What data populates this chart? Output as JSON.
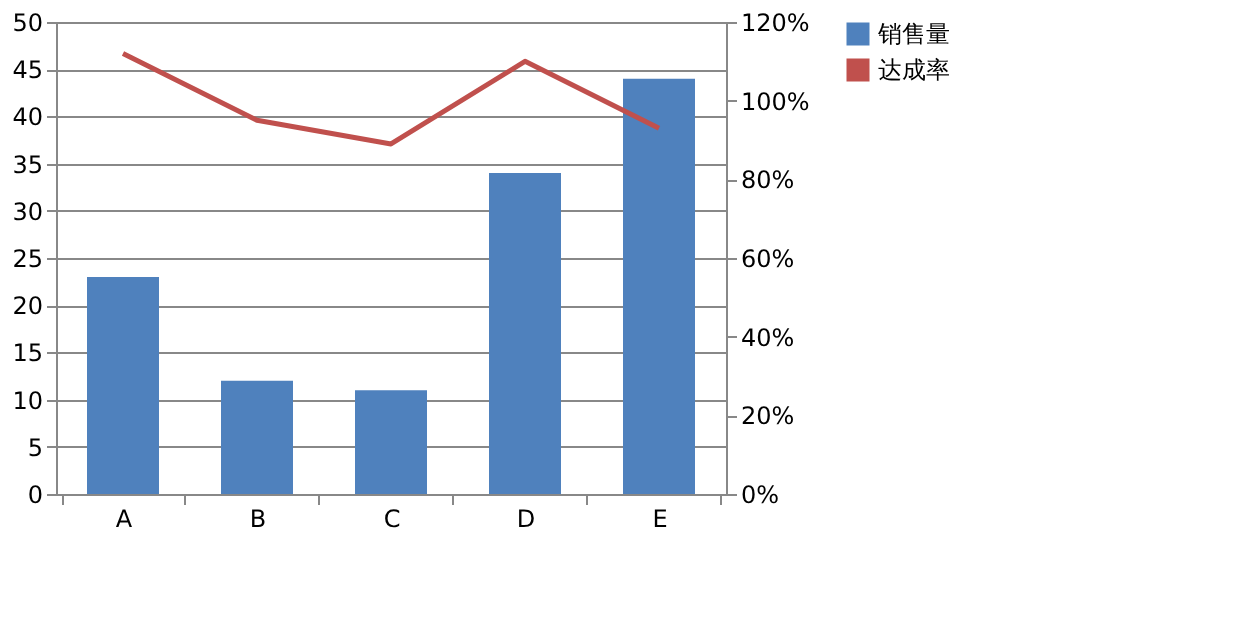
{
  "chart_data": {
    "type": "bar",
    "categories": [
      "A",
      "B",
      "C",
      "D",
      "E"
    ],
    "series": [
      {
        "name": "销售量",
        "color": "#4f81bd",
        "values": [
          23,
          12,
          11,
          34,
          44
        ]
      },
      {
        "name": "达成率",
        "type": "line",
        "axis": "y2",
        "color": "#c0504d",
        "values": [
          112,
          95,
          89,
          110,
          93
        ]
      }
    ],
    "ylim": [
      0,
      50
    ],
    "yticks": [
      0,
      5,
      10,
      15,
      20,
      25,
      30,
      35,
      40,
      45,
      50
    ],
    "y2lim": [
      0,
      120
    ],
    "y2ticks": [
      {
        "value": 0,
        "label": "0%"
      },
      {
        "value": 20,
        "label": "20%"
      },
      {
        "value": 40,
        "label": "40%"
      },
      {
        "value": 60,
        "label": "60%"
      },
      {
        "value": 80,
        "label": "80%"
      },
      {
        "value": 100,
        "label": "100%"
      },
      {
        "value": 120,
        "label": "120%"
      }
    ],
    "grid": "y",
    "legend": "right"
  }
}
